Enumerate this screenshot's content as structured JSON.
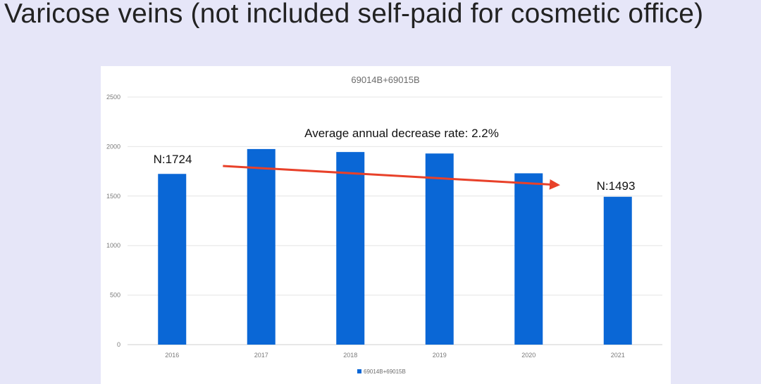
{
  "slide": {
    "title": "Varicose veins (not included self-paid for cosmetic office)"
  },
  "chart_data": {
    "type": "bar",
    "title": "69014B+69015B",
    "categories": [
      "2016",
      "2017",
      "2018",
      "2019",
      "2020",
      "2021"
    ],
    "series": [
      {
        "name": "69014B+69015B",
        "values": [
          1724,
          1975,
          1945,
          1930,
          1730,
          1493
        ],
        "color": "#0a67d6"
      }
    ],
    "ylim": [
      0,
      2500
    ],
    "yticks": [
      0,
      500,
      1000,
      1500,
      2000,
      2500
    ],
    "grid": true,
    "legend": "bottom",
    "annotations": {
      "trend_label": "Average annual decrease rate: 2.2%",
      "start_label": "N:1724",
      "end_label": "N:1493",
      "trend_color": "#e8412a"
    }
  }
}
